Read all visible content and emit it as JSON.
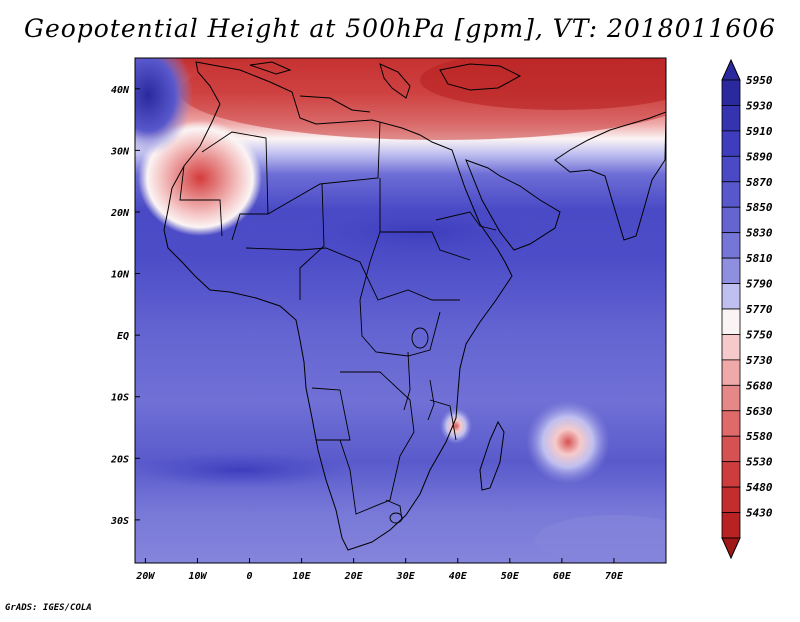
{
  "title": "Geopotential Height at 500hPa [gpm], VT: 2018011606",
  "credit": "GrADS: IGES/COLA",
  "map": {
    "lat_ticks": [
      "40N",
      "30N",
      "20N",
      "10N",
      "EQ",
      "10S",
      "20S",
      "30S"
    ],
    "lat_values": [
      40,
      30,
      20,
      10,
      0,
      -10,
      -20,
      -30
    ],
    "lon_ticks": [
      "20W",
      "10W",
      "0",
      "10E",
      "20E",
      "30E",
      "40E",
      "50E",
      "60E",
      "70E"
    ],
    "lon_values": [
      -20,
      -10,
      0,
      10,
      20,
      30,
      40,
      50,
      60,
      70
    ],
    "lon_range": [
      -22,
      80
    ],
    "lat_range": [
      -37,
      45
    ]
  },
  "colorbar": {
    "labels": [
      "5950",
      "5930",
      "5910",
      "5890",
      "5870",
      "5850",
      "5830",
      "5810",
      "5790",
      "5770",
      "5750",
      "5730",
      "5680",
      "5630",
      "5580",
      "5530",
      "5480",
      "5430"
    ],
    "colors": [
      "#2a2a9e",
      "#3434b0",
      "#3d3dbd",
      "#4a4ac6",
      "#5858cc",
      "#6565d2",
      "#7676d8",
      "#8f8fe0",
      "#bfbff0",
      "#fbf4f4",
      "#f6caca",
      "#efa9a9",
      "#e68888",
      "#de6a6a",
      "#d65252",
      "#ce3d3d",
      "#c32d2d",
      "#b82222"
    ]
  },
  "colors": {
    "background_field": "#5e5ed0",
    "trough_red": "#d43c3c",
    "coast": "#000000"
  }
}
